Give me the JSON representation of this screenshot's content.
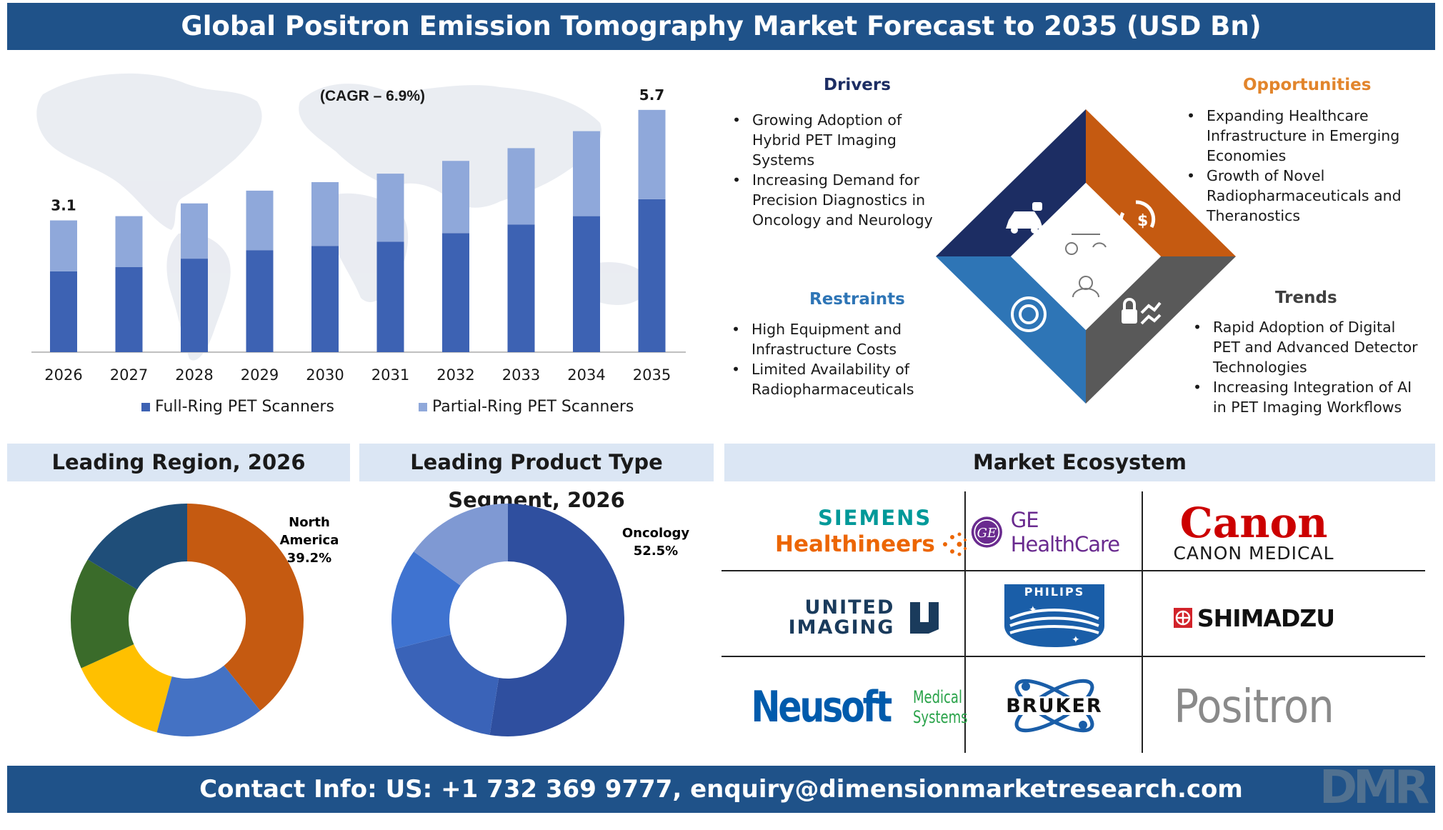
{
  "title": "Global Positron Emission Tomography Market Forecast to 2035 (USD Bn)",
  "footer": "Contact Info: US: +1 732 369 9777, enquiry@dimensionmarketresearch.com",
  "colors": {
    "banner": "#1f5289",
    "full_ring": "#3d62b3",
    "partial_ring": "#8fa8da",
    "drivers": "#1c2d63",
    "opportunities": "#c55a11",
    "restraints": "#2e75b6",
    "trends": "#595959",
    "orange_text": "#e2852c"
  },
  "chart_data": [
    {
      "type": "bar",
      "stacked": true,
      "categories": [
        "2026",
        "2027",
        "2028",
        "2029",
        "2030",
        "2031",
        "2032",
        "2033",
        "2034",
        "2035"
      ],
      "series": [
        {
          "name": "Full-Ring PET Scanners",
          "values": [
            1.9,
            2.0,
            2.2,
            2.4,
            2.5,
            2.6,
            2.8,
            3.0,
            3.2,
            3.6
          ]
        },
        {
          "name": "Partial-Ring PET Scanners",
          "values": [
            1.2,
            1.2,
            1.3,
            1.4,
            1.5,
            1.6,
            1.7,
            1.8,
            2.0,
            2.1
          ]
        }
      ],
      "totals_labeled": {
        "2026": "3.1",
        "2035": "5.7"
      },
      "annotation": "(CAGR – 6.9%)",
      "ylim": [
        0,
        6
      ],
      "legend_position": "bottom"
    },
    {
      "type": "pie",
      "donut": true,
      "title": "Leading Region, 2026",
      "slices": [
        {
          "value": 39.2,
          "color": "#c55a11"
        },
        {
          "value": 15.0,
          "color": "#4472c4"
        },
        {
          "value": 14.0,
          "color": "#ffc000"
        },
        {
          "value": 15.5,
          "color": "#3a6b2a"
        },
        {
          "value": 16.3,
          "color": "#1f4e79"
        }
      ],
      "label_name": [
        "North",
        "America"
      ],
      "label_value": "39.2%"
    },
    {
      "type": "pie",
      "donut": true,
      "title": "Leading Product Type Segment, 2026",
      "slices": [
        {
          "value": 52.5,
          "color": "#2f4f9f"
        },
        {
          "value": 18.5,
          "color": "#3a63b8"
        },
        {
          "value": 14.0,
          "color": "#3f73d0"
        },
        {
          "value": 15.0,
          "color": "#7f99d3"
        }
      ],
      "label_name": [
        "Oncology"
      ],
      "label_value": "52.5%"
    }
  ],
  "drivers": {
    "heading": "Drivers",
    "items": [
      "Growing Adoption of Hybrid PET Imaging Systems",
      "Increasing Demand for Precision Diagnostics in Oncology and Neurology"
    ]
  },
  "opportunities": {
    "heading": "Opportunities",
    "items": [
      "Expanding Healthcare Infrastructure in Emerging Economies",
      "Growth of Novel Radiopharmaceuticals and Theranostics"
    ]
  },
  "restraints": {
    "heading": "Restraints",
    "items": [
      "High Equipment and Infrastructure Costs",
      "Limited Availability of Radiopharmaceuticals"
    ]
  },
  "trends": {
    "heading": "Trends",
    "items": [
      "Rapid Adoption of Digital PET and Advanced Detector Technologies",
      "Increasing Integration of AI in PET Imaging Workflows"
    ]
  },
  "sections": {
    "region": "Leading Region, 2026",
    "product": "Leading Product Type Segment, 2026",
    "ecosystem": "Market Ecosystem"
  },
  "ecosystem_logos": {
    "siemens_top": "SIEMENS",
    "siemens_bottom": "Healthineers",
    "ge_mark": "GE",
    "ge_text": "GE HealthCare",
    "canon_top": "Canon",
    "canon_bottom": "CANON MEDICAL",
    "united_top": "UNITED",
    "united_bottom": "IMAGING",
    "philips": "PHILIPS",
    "shimadzu": "SHIMADZU",
    "neusoft": "Neusoft",
    "neusoft_sub1": "Medical",
    "neusoft_sub2": "Systems",
    "bruker": "BRUKER",
    "positron": "Positron"
  },
  "brand_mark": "DMR"
}
